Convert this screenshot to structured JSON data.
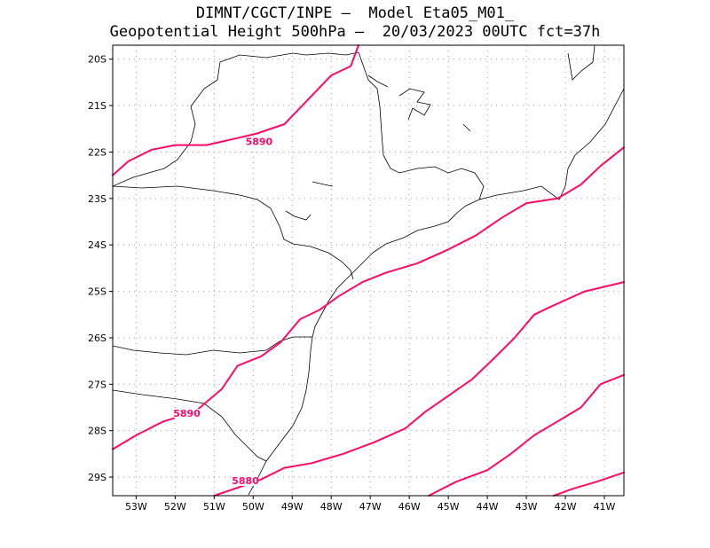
{
  "header": {
    "line1": "DIMNT/CGCT/INPE –  Model Eta05_M01_",
    "line2": "Geopotential Height 500hPa –  20/03/2023 00UTC fct=37h"
  },
  "map": {
    "lon_range": [
      -53.6,
      -40.5
    ],
    "lat_range": [
      -29.4,
      -19.7
    ],
    "lon_ticks": [
      {
        "value": -53,
        "label": "53W"
      },
      {
        "value": -52,
        "label": "52W"
      },
      {
        "value": -51,
        "label": "51W"
      },
      {
        "value": -50,
        "label": "50W"
      },
      {
        "value": -49,
        "label": "49W"
      },
      {
        "value": -48,
        "label": "48W"
      },
      {
        "value": -47,
        "label": "47W"
      },
      {
        "value": -46,
        "label": "46W"
      },
      {
        "value": -45,
        "label": "45W"
      },
      {
        "value": -44,
        "label": "44W"
      },
      {
        "value": -43,
        "label": "43W"
      },
      {
        "value": -42,
        "label": "42W"
      },
      {
        "value": -41,
        "label": "41W"
      }
    ],
    "lat_ticks": [
      {
        "value": -20,
        "label": "20S"
      },
      {
        "value": -21,
        "label": "21S"
      },
      {
        "value": -22,
        "label": "22S"
      },
      {
        "value": -23,
        "label": "23S"
      },
      {
        "value": -24,
        "label": "24S"
      },
      {
        "value": -25,
        "label": "25S"
      },
      {
        "value": -26,
        "label": "26S"
      },
      {
        "value": -27,
        "label": "27S"
      },
      {
        "value": -28,
        "label": "28S"
      },
      {
        "value": -29,
        "label": "29S"
      }
    ],
    "contour_color": "#ff0a6a",
    "contours": [
      {
        "name": "upper-5890",
        "label": "5890",
        "label_at": [
          -49.85,
          -21.85
        ],
        "points": [
          [
            -53.6,
            -22.5
          ],
          [
            -53.2,
            -22.2
          ],
          [
            -52.6,
            -21.95
          ],
          [
            -52.0,
            -21.85
          ],
          [
            -51.2,
            -21.85
          ],
          [
            -50.4,
            -21.7
          ],
          [
            -49.9,
            -21.6
          ],
          [
            -49.2,
            -21.4
          ],
          [
            -48.4,
            -20.7
          ],
          [
            -48.0,
            -20.35
          ],
          [
            -47.5,
            -20.15
          ],
          [
            -47.3,
            -19.7
          ]
        ]
      },
      {
        "name": "lower-5890",
        "label": "5890",
        "label_at": [
          -51.7,
          -27.7
        ],
        "points": [
          [
            -53.6,
            -28.4
          ],
          [
            -53.0,
            -28.1
          ],
          [
            -52.3,
            -27.8
          ],
          [
            -51.5,
            -27.6
          ],
          [
            -50.8,
            -27.1
          ],
          [
            -50.4,
            -26.6
          ],
          [
            -49.8,
            -26.4
          ],
          [
            -49.3,
            -26.1
          ],
          [
            -48.8,
            -25.6
          ],
          [
            -48.3,
            -25.4
          ],
          [
            -47.8,
            -25.1
          ],
          [
            -47.2,
            -24.8
          ],
          [
            -46.6,
            -24.6
          ],
          [
            -45.8,
            -24.4
          ],
          [
            -45.0,
            -24.1
          ],
          [
            -44.3,
            -23.8
          ],
          [
            -43.6,
            -23.4
          ],
          [
            -43.0,
            -23.1
          ],
          [
            -42.2,
            -23.0
          ],
          [
            -41.6,
            -22.7
          ],
          [
            -41.1,
            -22.3
          ],
          [
            -40.5,
            -21.9
          ]
        ]
      },
      {
        "name": "5880",
        "label": "5880",
        "label_at": [
          -50.2,
          -29.15
        ],
        "points": [
          [
            -51.0,
            -29.4
          ],
          [
            -50.3,
            -29.2
          ],
          [
            -49.8,
            -29.05
          ],
          [
            -49.2,
            -28.8
          ],
          [
            -48.5,
            -28.7
          ],
          [
            -47.7,
            -28.5
          ],
          [
            -46.9,
            -28.25
          ],
          [
            -46.1,
            -27.95
          ],
          [
            -45.6,
            -27.6
          ],
          [
            -45.0,
            -27.25
          ],
          [
            -44.4,
            -26.9
          ],
          [
            -43.9,
            -26.5
          ],
          [
            -43.3,
            -26.0
          ],
          [
            -42.8,
            -25.5
          ],
          [
            -42.3,
            -25.3
          ],
          [
            -41.5,
            -25.0
          ],
          [
            -40.5,
            -24.8
          ]
        ]
      },
      {
        "name": "contour-e1",
        "label": "",
        "label_at": null,
        "points": [
          [
            -45.5,
            -29.4
          ],
          [
            -44.8,
            -29.1
          ],
          [
            -44.0,
            -28.85
          ],
          [
            -43.4,
            -28.5
          ],
          [
            -42.8,
            -28.1
          ],
          [
            -42.2,
            -27.8
          ],
          [
            -41.6,
            -27.5
          ],
          [
            -41.1,
            -27.0
          ],
          [
            -40.5,
            -26.8
          ]
        ]
      },
      {
        "name": "contour-e2",
        "label": "",
        "label_at": null,
        "points": [
          [
            -42.3,
            -29.4
          ],
          [
            -41.8,
            -29.25
          ],
          [
            -41.2,
            -29.1
          ],
          [
            -40.5,
            -28.9
          ]
        ]
      }
    ]
  }
}
